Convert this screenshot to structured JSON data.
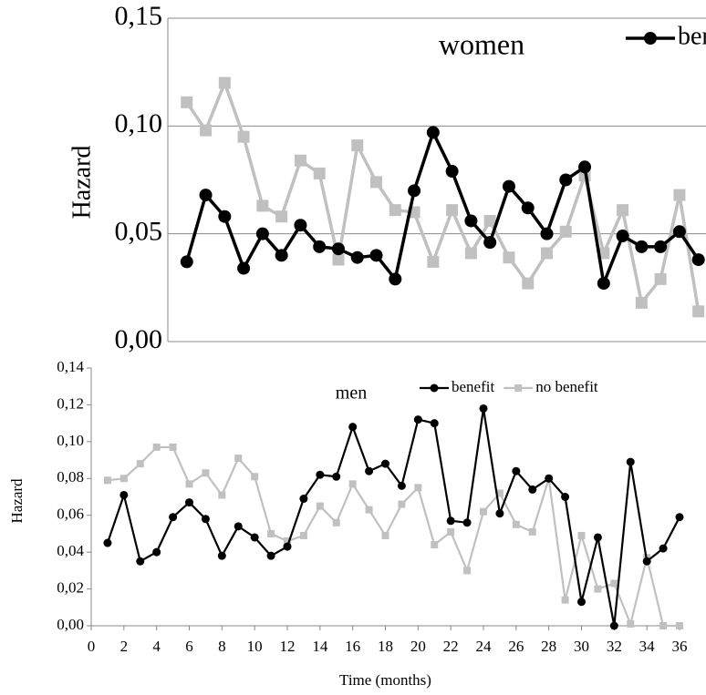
{
  "chart_data": [
    {
      "type": "line",
      "title": "women",
      "ylabel": "Hazard",
      "x": [
        1,
        2,
        3,
        4,
        5,
        6,
        7,
        8,
        9,
        10,
        11,
        12,
        13,
        14,
        15,
        16,
        17,
        18,
        19,
        20,
        21,
        22,
        23,
        24,
        25,
        26,
        27,
        28
      ],
      "series": [
        {
          "name": "benefit",
          "color": "#000000",
          "marker": "circle",
          "values": [
            0.037,
            0.068,
            0.058,
            0.034,
            0.05,
            0.04,
            0.054,
            0.044,
            0.043,
            0.039,
            0.04,
            0.029,
            0.07,
            0.097,
            0.079,
            0.056,
            0.046,
            0.072,
            0.062,
            0.05,
            0.075,
            0.081,
            0.027,
            0.049,
            0.044,
            0.044,
            0.051,
            0.038
          ]
        },
        {
          "name": "no benefit",
          "color": "#c0c0c0",
          "marker": "square",
          "values": [
            0.111,
            0.098,
            0.12,
            0.095,
            0.063,
            0.058,
            0.084,
            0.078,
            0.038,
            0.091,
            0.074,
            0.061,
            0.06,
            0.037,
            0.061,
            0.041,
            0.056,
            0.039,
            0.027,
            0.041,
            0.051,
            0.077,
            0.041,
            0.061,
            0.018,
            0.029,
            0.068,
            0.014
          ]
        }
      ],
      "xlim": [
        0,
        28.4
      ],
      "ylim": [
        0,
        0.15
      ],
      "yticks": [
        {
          "value": 0,
          "label": "0,00"
        },
        {
          "value": 0.05,
          "label": "0,05"
        },
        {
          "value": 0.1,
          "label": "0,10"
        },
        {
          "value": 0.15,
          "label": "0,15"
        }
      ],
      "grid": true,
      "legend": "upper right"
    },
    {
      "type": "line",
      "title": "men",
      "ylabel": "Hazard",
      "xlabel": "Time (months)",
      "x": [
        1,
        2,
        3,
        4,
        5,
        6,
        7,
        8,
        9,
        10,
        11,
        12,
        13,
        14,
        15,
        16,
        17,
        18,
        19,
        20,
        21,
        22,
        23,
        24,
        25,
        26,
        27,
        28,
        29,
        30,
        31,
        32,
        33,
        34,
        35,
        36
      ],
      "series": [
        {
          "name": "benefit",
          "color": "#000000",
          "marker": "circle",
          "values": [
            0.045,
            0.071,
            0.035,
            0.04,
            0.059,
            0.067,
            0.058,
            0.038,
            0.054,
            0.048,
            0.038,
            0.043,
            0.069,
            0.082,
            0.081,
            0.108,
            0.084,
            0.088,
            0.076,
            0.112,
            0.11,
            0.057,
            0.056,
            0.118,
            0.061,
            0.084,
            0.074,
            0.08,
            0.07,
            0.013,
            0.048,
            0.0,
            0.089,
            0.035,
            0.042,
            0.059
          ]
        },
        {
          "name": "no benefit",
          "color": "#c0c0c0",
          "marker": "square",
          "values": [
            0.079,
            0.08,
            0.088,
            0.097,
            0.097,
            0.077,
            0.083,
            0.071,
            0.091,
            0.081,
            0.05,
            0.046,
            0.049,
            0.065,
            0.056,
            0.077,
            0.063,
            0.049,
            0.066,
            0.075,
            0.044,
            0.051,
            0.03,
            0.062,
            0.072,
            0.055,
            0.051,
            0.08,
            0.014,
            0.049,
            0.02,
            0.023,
            0.001,
            0.037,
            0.0,
            0.0
          ]
        }
      ],
      "xlim": [
        0,
        36
      ],
      "ylim": [
        0,
        0.14
      ],
      "xticks": [
        0,
        2,
        4,
        6,
        8,
        10,
        12,
        14,
        16,
        18,
        20,
        22,
        24,
        26,
        28,
        30,
        32,
        34,
        36
      ],
      "yticks": [
        {
          "value": 0,
          "label": "0,00"
        },
        {
          "value": 0.02,
          "label": "0,02"
        },
        {
          "value": 0.04,
          "label": "0,04"
        },
        {
          "value": 0.06,
          "label": "0,06"
        },
        {
          "value": 0.08,
          "label": "0,08"
        },
        {
          "value": 0.1,
          "label": "0,10"
        },
        {
          "value": 0.12,
          "label": "0,12"
        },
        {
          "value": 0.14,
          "label": "0,14"
        }
      ],
      "grid": false,
      "legend": "upper right"
    }
  ]
}
